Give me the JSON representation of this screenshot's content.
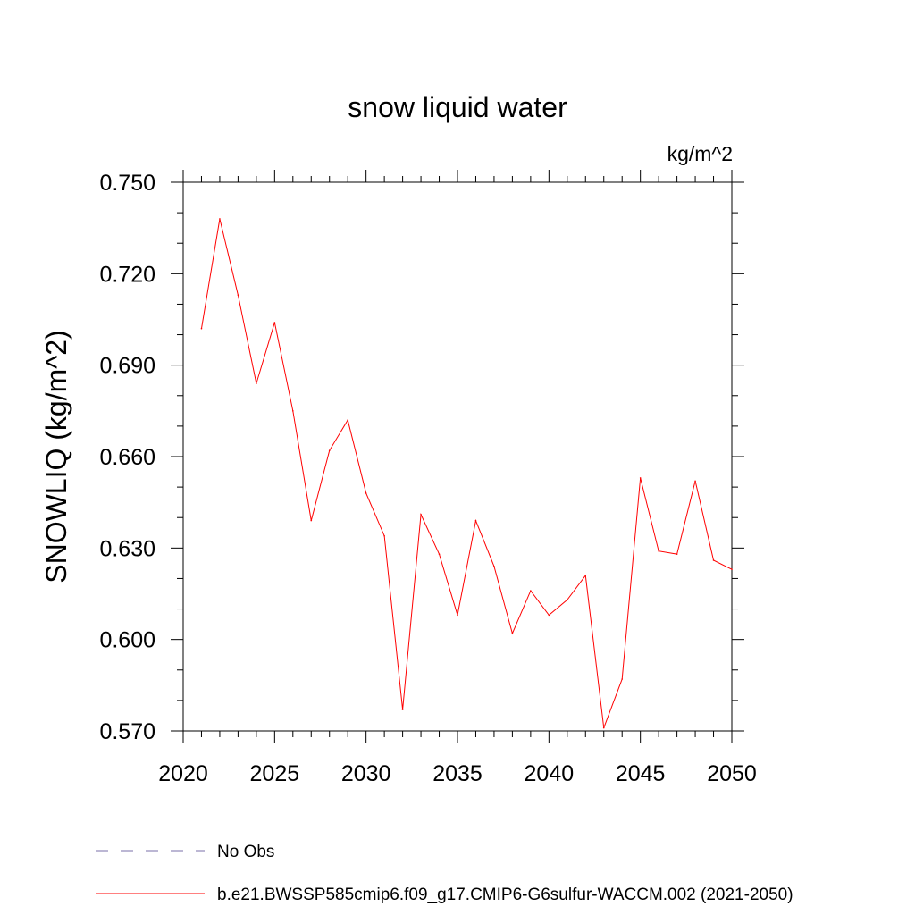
{
  "chart_data": {
    "type": "line",
    "title": "snow liquid water",
    "units": "kg/m^2",
    "ylabel": "SNOWLIQ  (kg/m^2)",
    "xlabel": "",
    "xlim": [
      2020,
      2050
    ],
    "ylim": [
      0.57,
      0.75
    ],
    "x_ticks": [
      2020,
      2025,
      2030,
      2035,
      2040,
      2045,
      2050
    ],
    "y_ticks": [
      "0.570",
      "0.600",
      "0.630",
      "0.660",
      "0.690",
      "0.720",
      "0.750"
    ],
    "grid": false,
    "series": [
      {
        "name": "b.e21.BWSSP585cmip6.f09_g17.CMIP6-G6sulfur-WACCM.002 (2021-2050)",
        "color": "#ff0000",
        "x": [
          2021,
          2022,
          2023,
          2024,
          2025,
          2026,
          2027,
          2028,
          2029,
          2030,
          2031,
          2032,
          2033,
          2034,
          2035,
          2036,
          2037,
          2038,
          2039,
          2040,
          2041,
          2042,
          2043,
          2044,
          2045,
          2046,
          2047,
          2048,
          2049,
          2050
        ],
        "y": [
          0.702,
          0.738,
          0.713,
          0.684,
          0.704,
          0.675,
          0.639,
          0.662,
          0.672,
          0.648,
          0.634,
          0.577,
          0.641,
          0.628,
          0.608,
          0.639,
          0.624,
          0.602,
          0.616,
          0.608,
          0.613,
          0.621,
          0.571,
          0.587,
          0.653,
          0.629,
          0.628,
          0.652,
          0.626,
          0.623
        ]
      }
    ],
    "legend": {
      "position": "bottom",
      "entries": [
        {
          "label": "No Obs",
          "style": "dashed",
          "color": "#7a6fa8"
        },
        {
          "label": "b.e21.BWSSP585cmip6.f09_g17.CMIP6-G6sulfur-WACCM.002 (2021-2050)",
          "style": "solid",
          "color": "#ff0000"
        }
      ]
    }
  }
}
